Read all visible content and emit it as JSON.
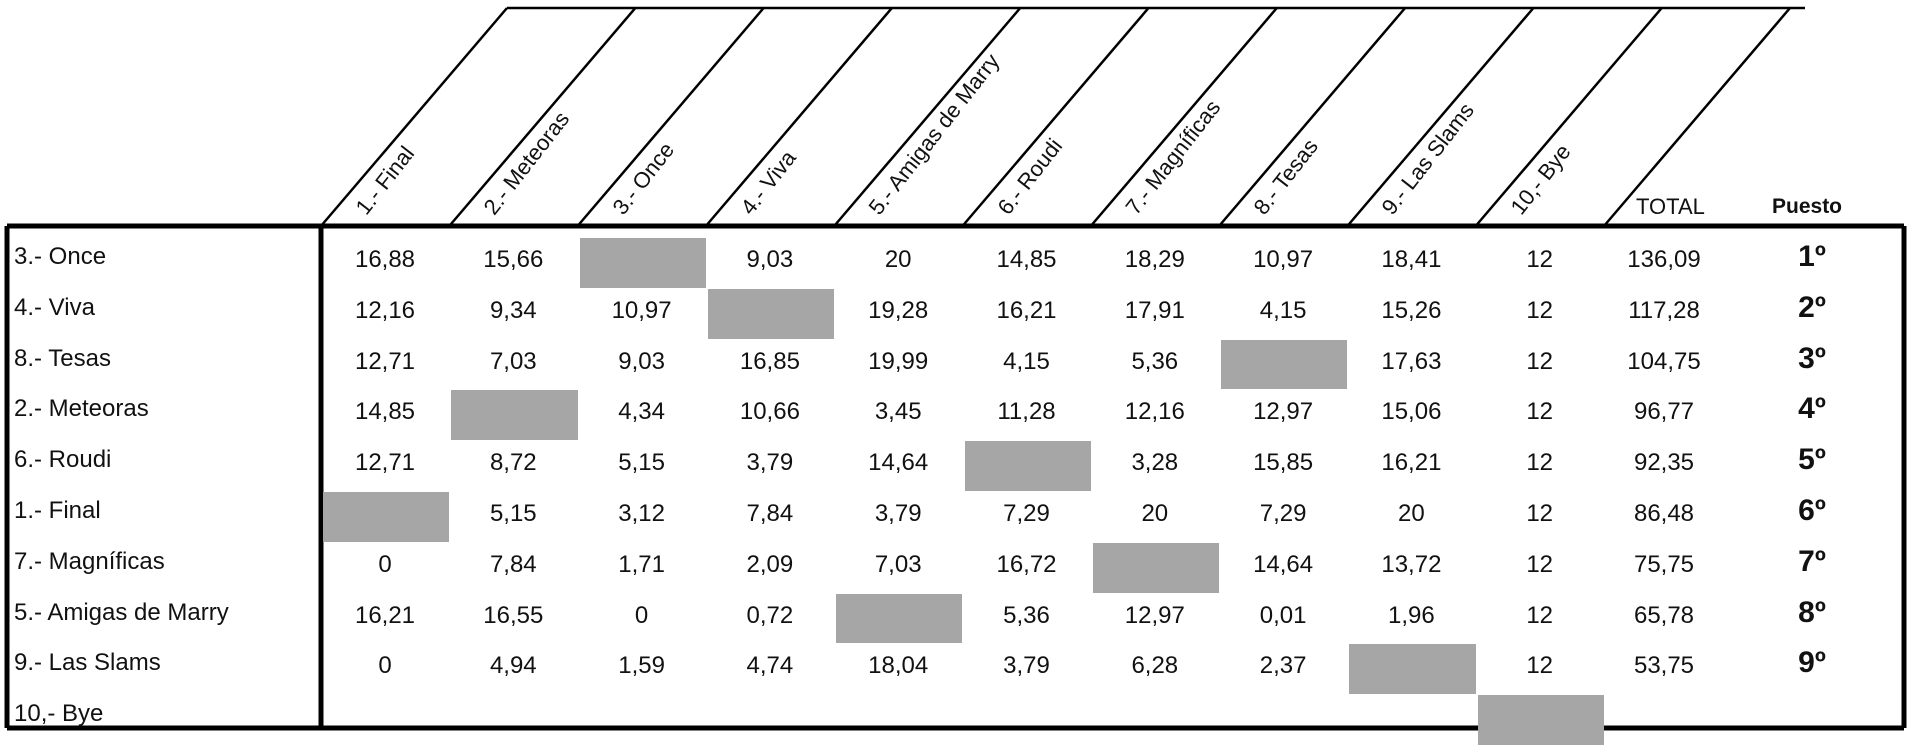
{
  "header": {
    "columns": [
      "1.- Final",
      "2.-  Meteoras",
      "3.- Once",
      "4.- Viva",
      "5.- Amigas de Marry",
      "6.- Roudi",
      "7.- Magníficas",
      "8.- Tesas",
      "9.- Las Slams",
      "10,- Bye"
    ],
    "total_label": "TOTAL",
    "puesto_label": "Puesto"
  },
  "rows": [
    {
      "label": "3.- Once",
      "scores": [
        "16,88",
        "15,66",
        null,
        "9,03",
        "20",
        "14,85",
        "18,29",
        "10,97",
        "18,41",
        "12"
      ],
      "total": "136,09",
      "rank": "1º",
      "blank_col": 2
    },
    {
      "label": "4.- Viva",
      "scores": [
        "12,16",
        "9,34",
        "10,97",
        null,
        "19,28",
        "16,21",
        "17,91",
        "4,15",
        "15,26",
        "12"
      ],
      "total": "117,28",
      "rank": "2º",
      "blank_col": 3
    },
    {
      "label": "8.- Tesas",
      "scores": [
        "12,71",
        "7,03",
        "9,03",
        "16,85",
        "19,99",
        "4,15",
        "5,36",
        null,
        "17,63",
        "12"
      ],
      "total": "104,75",
      "rank": "3º",
      "blank_col": 7
    },
    {
      "label": "2.-  Meteoras",
      "scores": [
        "14,85",
        null,
        "4,34",
        "10,66",
        "3,45",
        "11,28",
        "12,16",
        "12,97",
        "15,06",
        "12"
      ],
      "total": "96,77",
      "rank": "4º",
      "blank_col": 1
    },
    {
      "label": "6.- Roudi",
      "scores": [
        "12,71",
        "8,72",
        "5,15",
        "3,79",
        "14,64",
        null,
        "3,28",
        "15,85",
        "16,21",
        "12"
      ],
      "total": "92,35",
      "rank": "5º",
      "blank_col": 5
    },
    {
      "label": "1.- Final",
      "scores": [
        null,
        "5,15",
        "3,12",
        "7,84",
        "3,79",
        "7,29",
        "20",
        "7,29",
        "20",
        "12"
      ],
      "total": "86,48",
      "rank": "6º",
      "blank_col": 0
    },
    {
      "label": "7.- Magníficas",
      "scores": [
        "0",
        "7,84",
        "1,71",
        "2,09",
        "7,03",
        "16,72",
        null,
        "14,64",
        "13,72",
        "12"
      ],
      "total": "75,75",
      "rank": "7º",
      "blank_col": 6
    },
    {
      "label": "5.- Amigas de Marry",
      "scores": [
        "16,21",
        "16,55",
        "0",
        "0,72",
        null,
        "5,36",
        "12,97",
        "0,01",
        "1,96",
        "12"
      ],
      "total": "65,78",
      "rank": "8º",
      "blank_col": 4
    },
    {
      "label": "9.- Las Slams",
      "scores": [
        "0",
        "4,94",
        "1,59",
        "4,74",
        "18,04",
        "3,79",
        "6,28",
        "2,37",
        null,
        "12"
      ],
      "total": "53,75",
      "rank": "9º",
      "blank_col": 8
    },
    {
      "label": "10,- Bye",
      "scores": [
        null,
        null,
        null,
        null,
        null,
        null,
        null,
        null,
        null,
        null
      ],
      "total": "",
      "rank": "",
      "blank_col": 9
    }
  ],
  "colors": {
    "blank_cell": "#a6a6a6",
    "border": "#000000"
  }
}
